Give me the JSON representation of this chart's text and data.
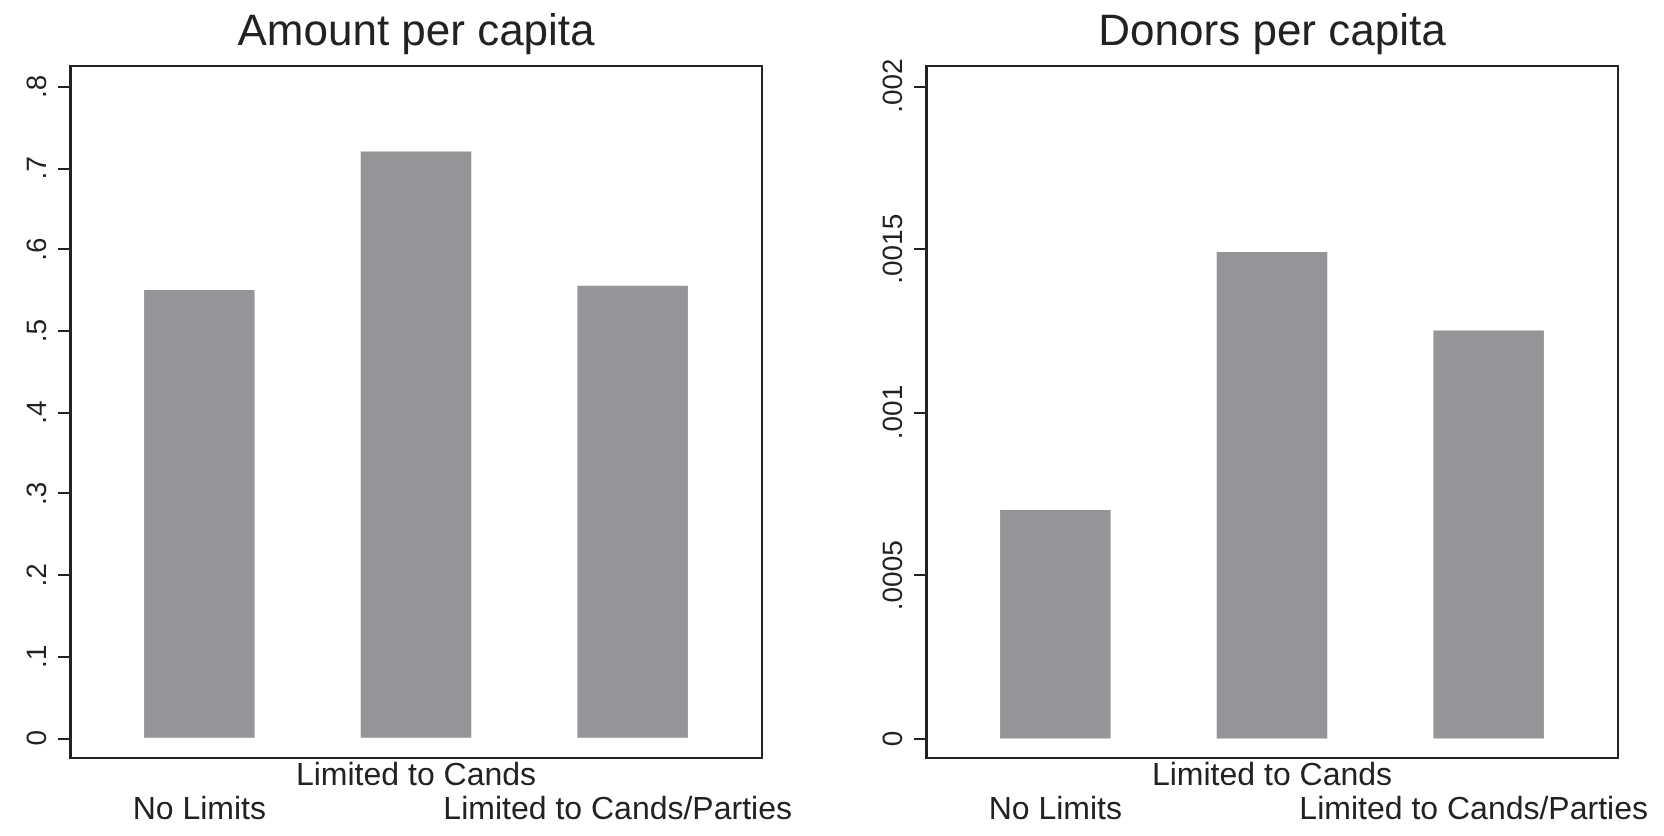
{
  "chart_data": [
    {
      "type": "bar",
      "title": "Amount per capita",
      "categories": [
        "No Limits",
        "Limited to Cands",
        "Limited to Cands/Parties"
      ],
      "values": [
        0.55,
        0.72,
        0.555
      ],
      "color": "#939598",
      "ylim": [
        -0.025,
        0.825
      ],
      "yticks": [
        0,
        {
          "value": 0.1,
          "label": ".1"
        },
        {
          "value": 0.2,
          "label": ".2"
        },
        {
          "value": 0.3,
          "label": ".3"
        },
        {
          "value": 0.4,
          "label": ".4"
        },
        {
          "value": 0.5,
          "label": ".5"
        },
        {
          "value": 0.6,
          "label": ".6"
        },
        {
          "value": 0.7,
          "label": ".7"
        },
        {
          "value": 0.8,
          "label": ".8"
        }
      ],
      "grid": false
    },
    {
      "type": "bar",
      "title": "Donors per capita",
      "categories": [
        "No Limits",
        "Limited to Cands",
        "Limited to Cands/Parties"
      ],
      "values": [
        0.0007,
        0.00149,
        0.00125
      ],
      "color": "#939598",
      "ylim": [
        -6e-05,
        0.00206
      ],
      "yticks": [
        0,
        {
          "value": 0.0005,
          "label": ".0005"
        },
        {
          "value": 0.001,
          "label": ".001"
        },
        {
          "value": 0.0015,
          "label": ".0015"
        },
        {
          "value": 0.002,
          "label": ".002"
        }
      ],
      "grid": false
    }
  ]
}
